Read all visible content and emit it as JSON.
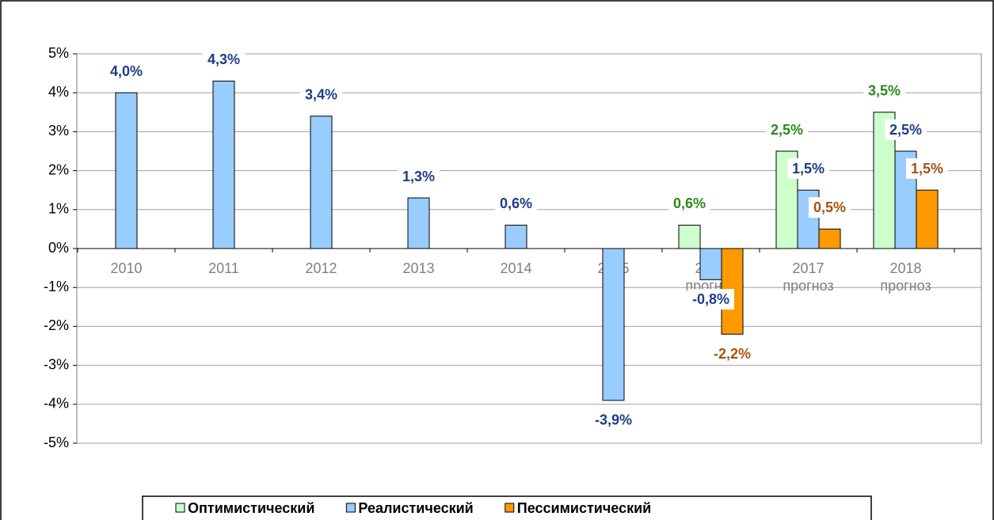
{
  "chart_data": {
    "type": "bar",
    "categories": [
      "2010",
      "2011",
      "2012",
      "2013",
      "2014",
      "2015",
      "2016\nпрогноз",
      "2017\nпрогноз",
      "2018\nпрогноз"
    ],
    "series": [
      {
        "name": "Оптимистический",
        "color": "#ccffcc",
        "label_color": "#2a8a1a",
        "values": [
          null,
          null,
          null,
          null,
          null,
          null,
          0.6,
          2.5,
          3.5
        ],
        "value_labels": [
          null,
          null,
          null,
          null,
          null,
          null,
          "0,6%",
          "2,5%",
          "3,5%"
        ]
      },
      {
        "name": "Реалистический",
        "color": "#99ccff",
        "label_color": "#1f3c88",
        "values": [
          4.0,
          4.3,
          3.4,
          1.3,
          0.6,
          -3.9,
          -0.8,
          1.5,
          2.5
        ],
        "value_labels": [
          "4,0%",
          "4,3%",
          "3,4%",
          "1,3%",
          "0,6%",
          "-3,9%",
          "-0,8%",
          "1,5%",
          "2,5%"
        ]
      },
      {
        "name": "Пессимистический",
        "color": "#ff9900",
        "label_color": "#a5520f",
        "values": [
          null,
          null,
          null,
          null,
          null,
          null,
          -2.2,
          0.5,
          1.5
        ],
        "value_labels": [
          null,
          null,
          null,
          null,
          null,
          null,
          "-2,2%",
          "0,5%",
          "1,5%"
        ]
      }
    ],
    "ylim": [
      -5,
      5
    ],
    "yticks": [
      {
        "value": -5,
        "label": "-5%"
      },
      {
        "value": -4,
        "label": "-4%"
      },
      {
        "value": -3,
        "label": "-3%"
      },
      {
        "value": -2,
        "label": "-2%"
      },
      {
        "value": -1,
        "label": "-1%"
      },
      {
        "value": 0,
        "label": "0%"
      },
      {
        "value": 1,
        "label": "1%"
      },
      {
        "value": 2,
        "label": "2%"
      },
      {
        "value": 3,
        "label": "3%"
      },
      {
        "value": 4,
        "label": "4%"
      },
      {
        "value": 5,
        "label": "5%"
      }
    ],
    "grid": true,
    "legend": "bottom"
  }
}
